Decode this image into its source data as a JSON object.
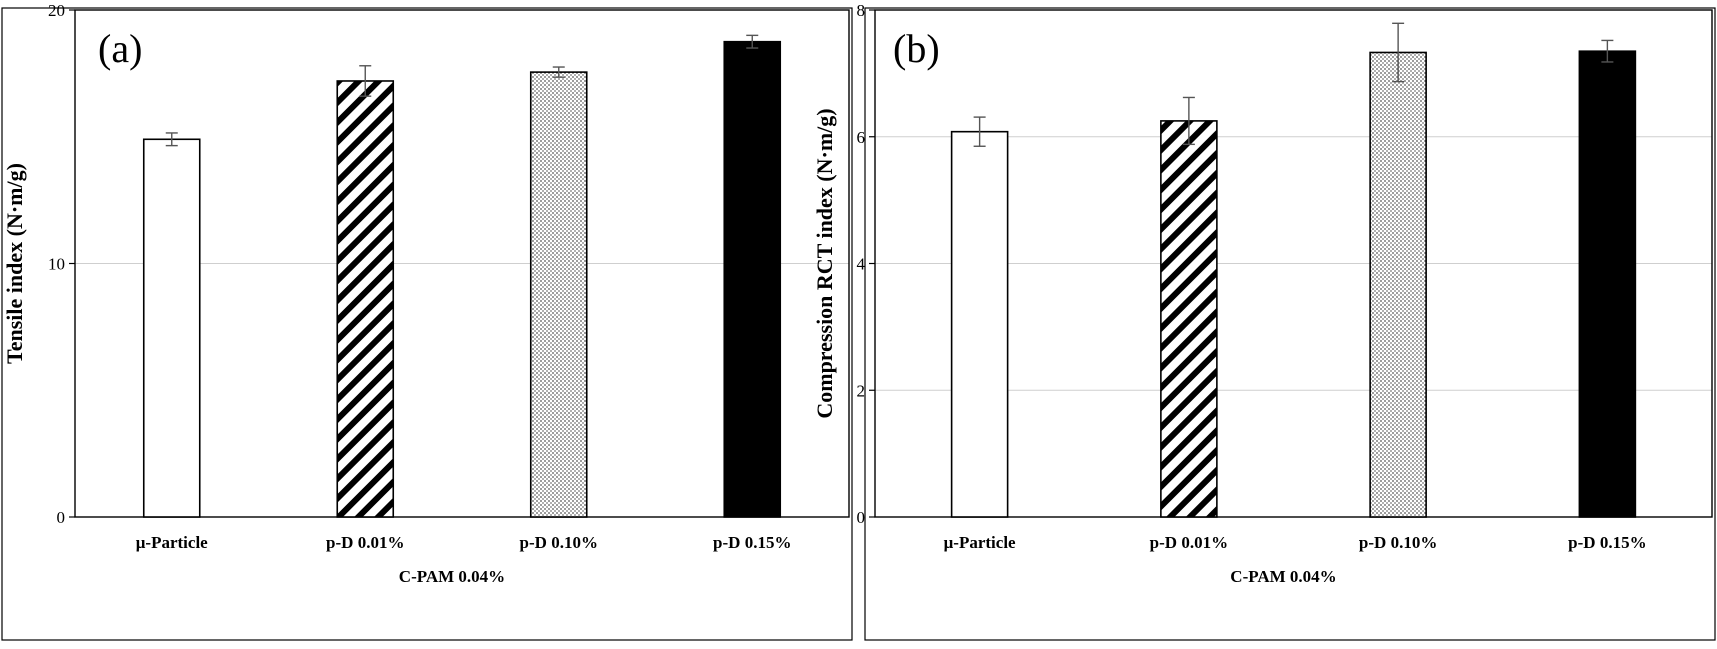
{
  "chart_data": [
    {
      "type": "bar",
      "panel_label": "(a)",
      "title": "",
      "ylabel": "Tensile index (N·m/g)",
      "group_label": "C-PAM 0.04%",
      "ylim": [
        0,
        20
      ],
      "yticks": [
        0,
        10,
        20
      ],
      "grid": true,
      "categories": [
        "μ-Particle",
        "p-D 0.01%",
        "p-D 0.10%",
        "p-D 0.15%"
      ],
      "values": [
        14.9,
        17.2,
        17.55,
        18.75
      ],
      "errors": [
        0.25,
        0.6,
        0.2,
        0.25
      ],
      "patterns": [
        "white",
        "diagonal-hatch",
        "dotted",
        "solid-black"
      ]
    },
    {
      "type": "bar",
      "panel_label": "(b)",
      "title": "",
      "ylabel": "Compression RCT index (N·m/g)",
      "group_label": "C-PAM 0.04%",
      "ylim": [
        0,
        8
      ],
      "yticks": [
        0,
        2,
        4,
        6,
        8
      ],
      "grid": true,
      "categories": [
        "μ-Particle",
        "p-D 0.01%",
        "p-D 0.10%",
        "p-D 0.15%"
      ],
      "values": [
        6.08,
        6.25,
        7.33,
        7.35
      ],
      "errors": [
        0.23,
        0.37,
        0.46,
        0.17
      ],
      "patterns": [
        "white",
        "diagonal-hatch",
        "dotted",
        "solid-black"
      ]
    }
  ]
}
